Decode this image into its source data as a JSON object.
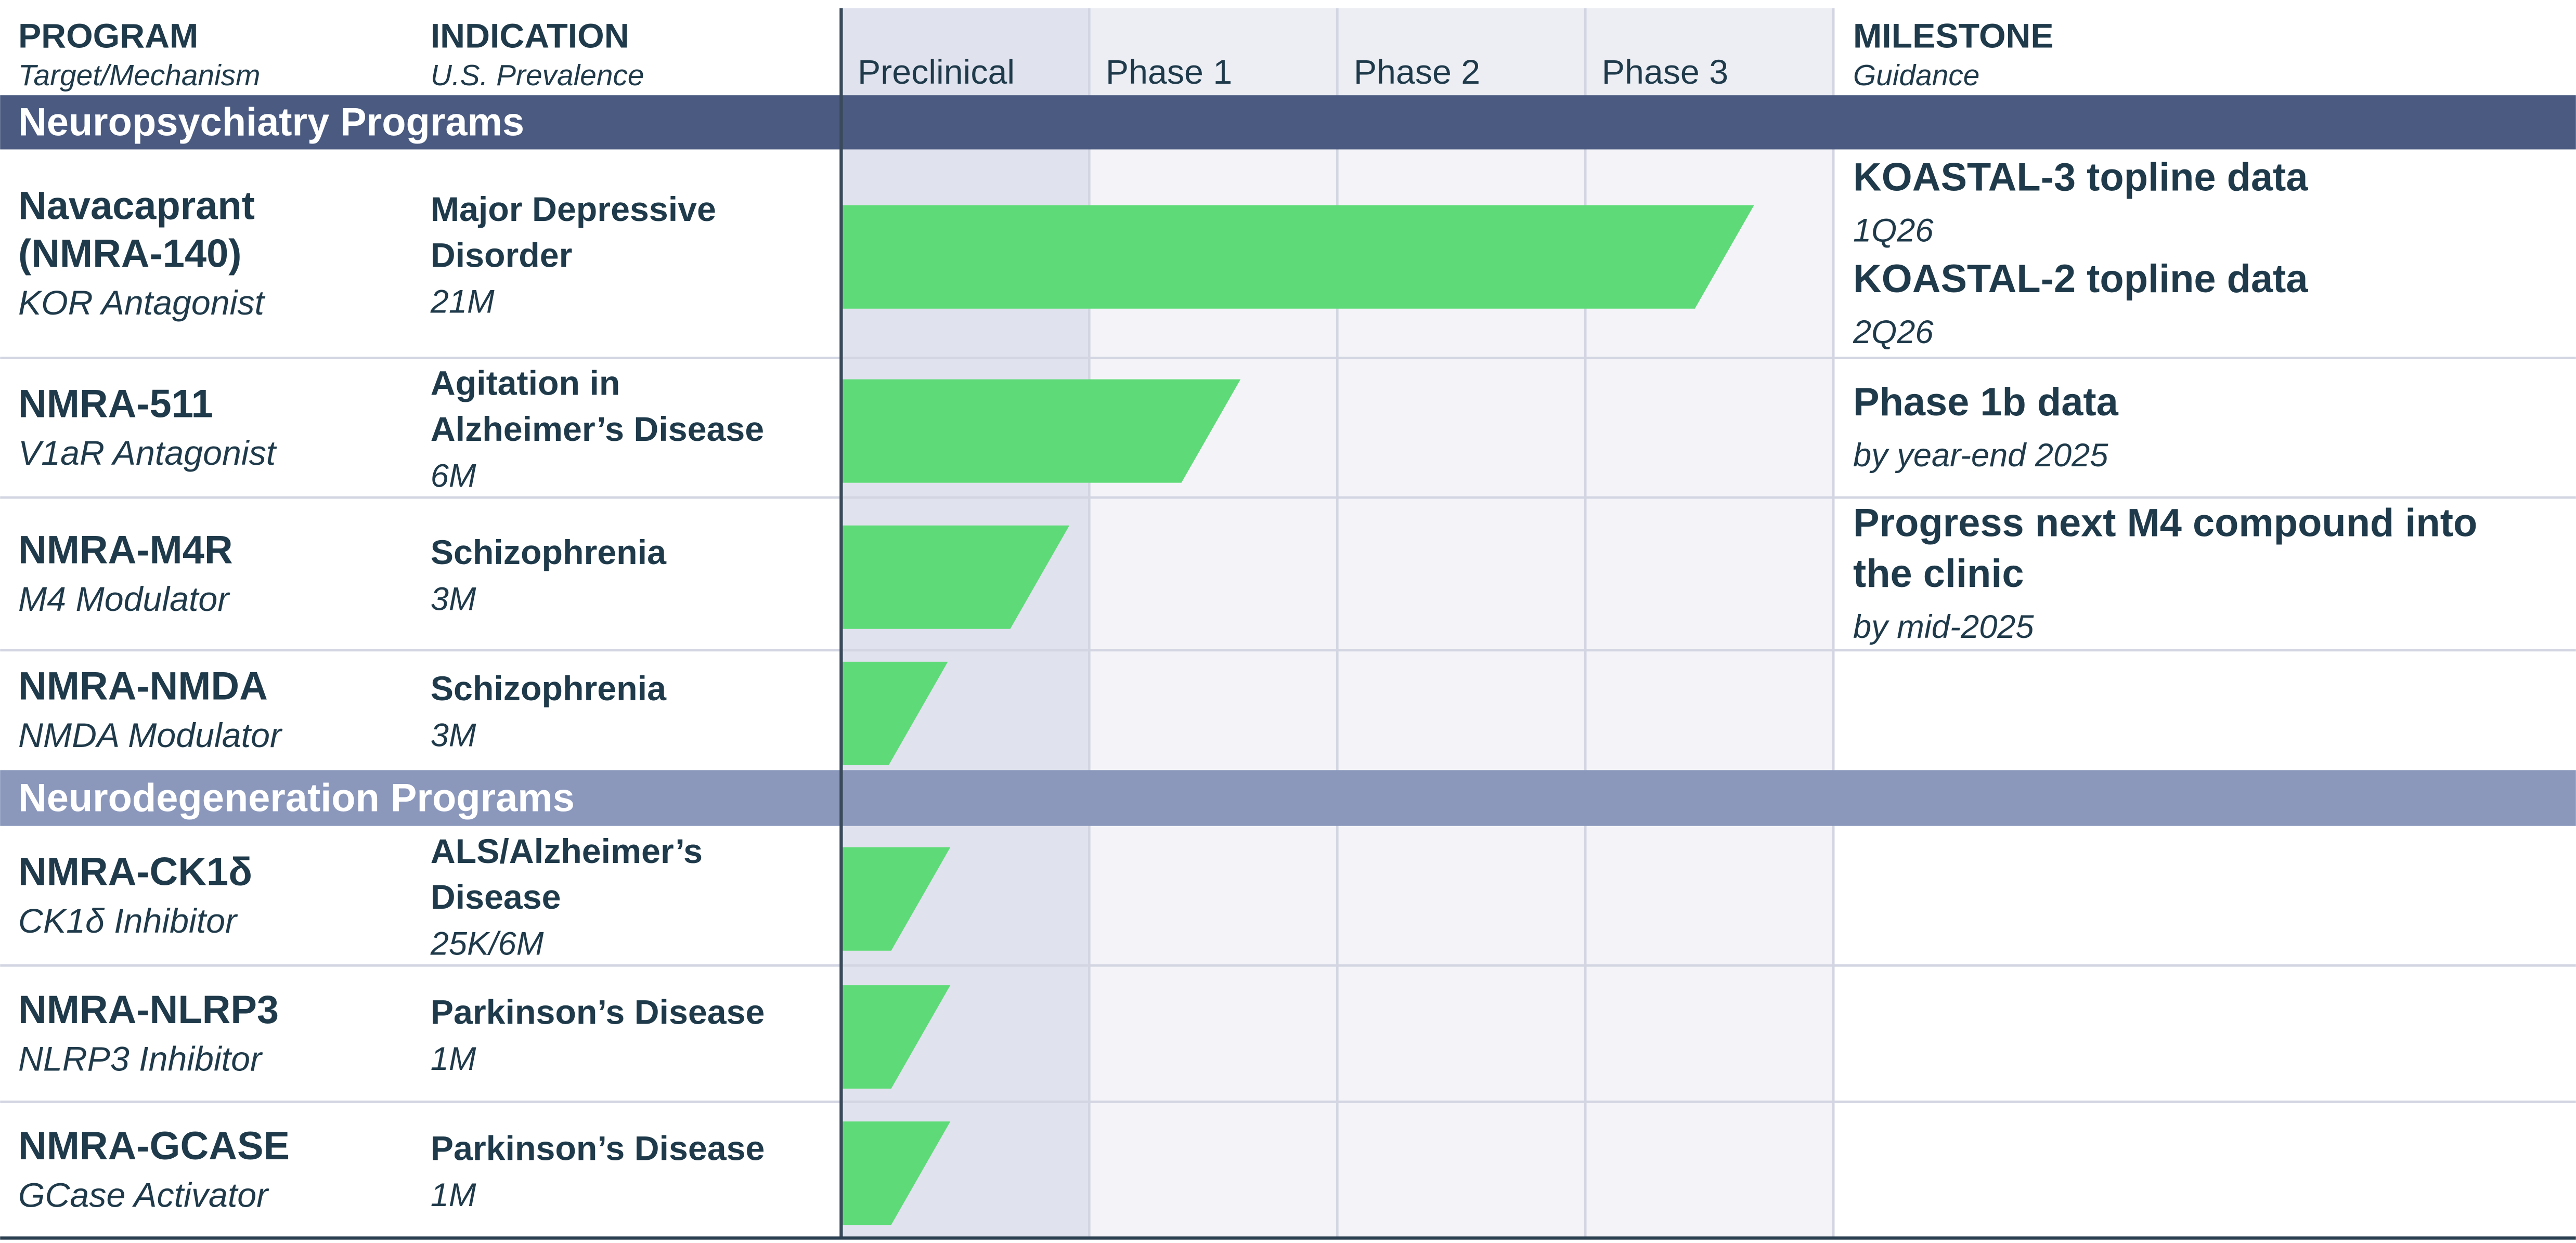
{
  "header": {
    "program": "PROGRAM",
    "program_sub": "Target/Mechanism",
    "indication": "INDICATION",
    "indication_sub": "U.S. Prevalence",
    "phases": [
      "Preclinical",
      "Phase 1",
      "Phase 2",
      "Phase 3"
    ],
    "milestone": "MILESTONE",
    "milestone_sub": "Guidance"
  },
  "sections": [
    {
      "title": "Neuropsychiatry Programs",
      "rows": [
        {
          "program": [
            "Navacaprant",
            "(NMRA-140)"
          ],
          "mechanism": "KOR Antagonist",
          "indication": [
            "Major Depressive",
            "Disorder"
          ],
          "prevalence": "21M",
          "progress": 3.68,
          "milestones": [
            {
              "title": [
                "KOASTAL-3 topline data"
              ],
              "guidance": "1Q26"
            },
            {
              "title": [
                "KOASTAL-2 topline data"
              ],
              "guidance": "2Q26"
            }
          ]
        },
        {
          "program": [
            "NMRA-511"
          ],
          "mechanism": "V1aR Antagonist",
          "indication": [
            "Agitation in",
            "Alzheimer’s Disease"
          ],
          "prevalence": "6M",
          "progress": 1.61,
          "milestones": [
            {
              "title": [
                "Phase 1b data"
              ],
              "guidance": "by year-end 2025"
            }
          ]
        },
        {
          "program": [
            "NMRA-M4R"
          ],
          "mechanism": "M4 Modulator",
          "indication": [
            "Schizophrenia"
          ],
          "prevalence": "3M",
          "progress": 0.92,
          "milestones": [
            {
              "title": [
                "Progress next M4 compound into",
                "the clinic"
              ],
              "guidance": "by mid-2025"
            }
          ]
        },
        {
          "program": [
            "NMRA-NMDA"
          ],
          "mechanism": "NMDA Modulator",
          "indication": [
            "Schizophrenia"
          ],
          "prevalence": "3M",
          "progress": 0.43,
          "milestones": []
        }
      ]
    },
    {
      "title": "Neurodegeneration Programs",
      "rows": [
        {
          "program": [
            "NMRA-CK1δ"
          ],
          "mechanism": "CK1δ Inhibitor",
          "indication": [
            "ALS/Alzheimer’s",
            "Disease"
          ],
          "prevalence": "25K/6M",
          "progress": 0.44,
          "milestones": []
        },
        {
          "program": [
            "NMRA-NLRP3"
          ],
          "mechanism": "NLRP3 Inhibitor",
          "indication": [
            "Parkinson’s Disease"
          ],
          "prevalence": "1M",
          "progress": 0.44,
          "milestones": []
        },
        {
          "program": [
            "NMRA-GCASE"
          ],
          "mechanism": "GCase Activator",
          "indication": [
            "Parkinson’s Disease"
          ],
          "prevalence": "1M",
          "progress": 0.44,
          "milestones": []
        }
      ]
    }
  ]
}
